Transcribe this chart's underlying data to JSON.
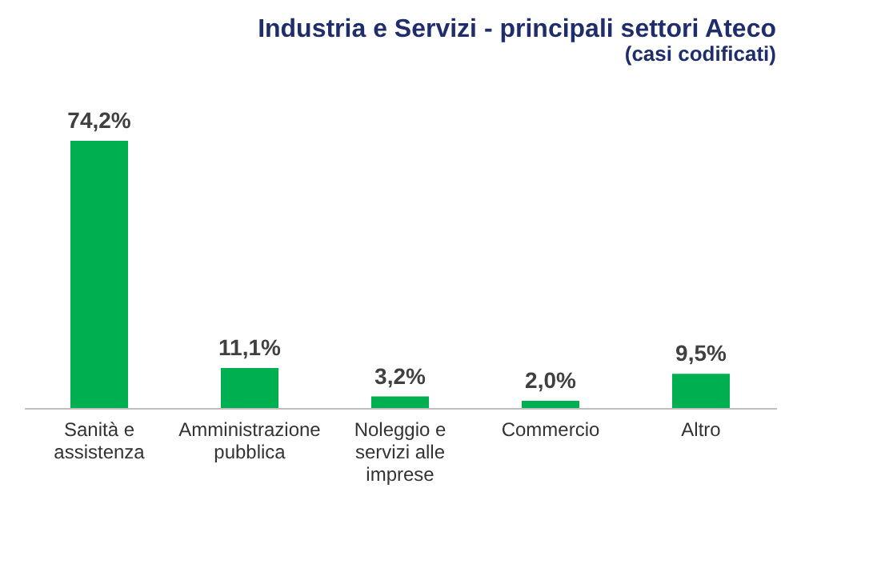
{
  "chart_data": {
    "type": "bar",
    "title": "Industria e Servizi - principali settori Ateco",
    "subtitle": "(casi codificati)",
    "categories": [
      "Sanità e assistenza",
      "Amministrazione pubblica",
      "Noleggio e servizi alle imprese",
      "Commercio",
      "Altro"
    ],
    "values": [
      74.2,
      11.1,
      3.2,
      2.0,
      9.5
    ],
    "value_labels": [
      "74,2%",
      "11,1%",
      "3,2%",
      "2,0%",
      "9,5%"
    ],
    "color": "#00b050"
  }
}
